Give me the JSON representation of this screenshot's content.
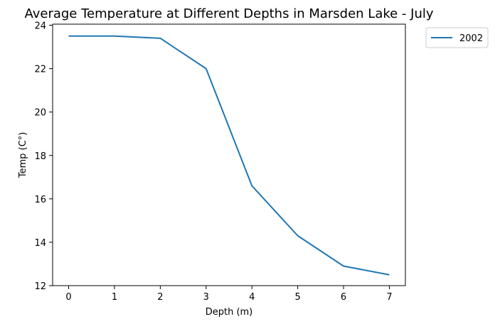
{
  "chart_data": {
    "type": "line",
    "title": "Average Temperature at Different Depths in Marsden Lake - July",
    "xlabel": "Depth (m)",
    "ylabel": "Temp (C°)",
    "x": [
      0,
      1,
      2,
      3,
      4,
      5,
      6,
      7
    ],
    "series": [
      {
        "name": "2002",
        "color": "#1f77b4",
        "values": [
          23.5,
          23.5,
          23.4,
          22.0,
          16.6,
          14.3,
          12.9,
          12.5
        ]
      }
    ],
    "xticks": [
      0,
      1,
      2,
      3,
      4,
      5,
      6,
      7
    ],
    "yticks": [
      12,
      14,
      16,
      18,
      20,
      22,
      24
    ],
    "xlim": [
      -0.35,
      7.35
    ],
    "ylim": [
      12.0,
      24.05
    ],
    "grid": false,
    "legend_position": "outside-top-right"
  }
}
